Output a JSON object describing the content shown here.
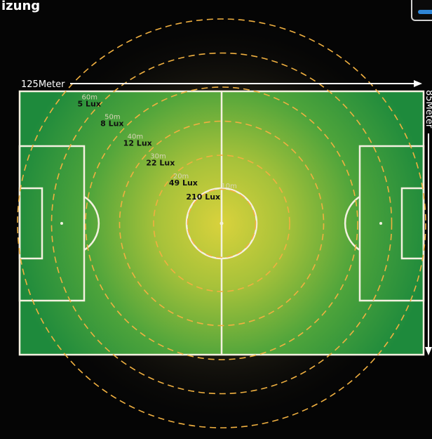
{
  "header": {
    "title": "izung"
  },
  "field": {
    "length_label": "125Meter",
    "width_label": "85Meter"
  },
  "zones": [
    {
      "radius": "60m",
      "lux": "5 Lux"
    },
    {
      "radius": "50m",
      "lux": "8 Lux"
    },
    {
      "radius": "40m",
      "lux": "12 Lux"
    },
    {
      "radius": "30m",
      "lux": "22 Lux"
    },
    {
      "radius": "20m",
      "lux": "49 Lux"
    },
    {
      "radius": "10m",
      "lux": "210 Lux"
    }
  ],
  "colors": {
    "pitch_edge": "#1f8a3c",
    "pitch_center": "#d7cf3a",
    "ring": "#f0b040",
    "lines": "#f4f1e0",
    "background": "#050505"
  }
}
